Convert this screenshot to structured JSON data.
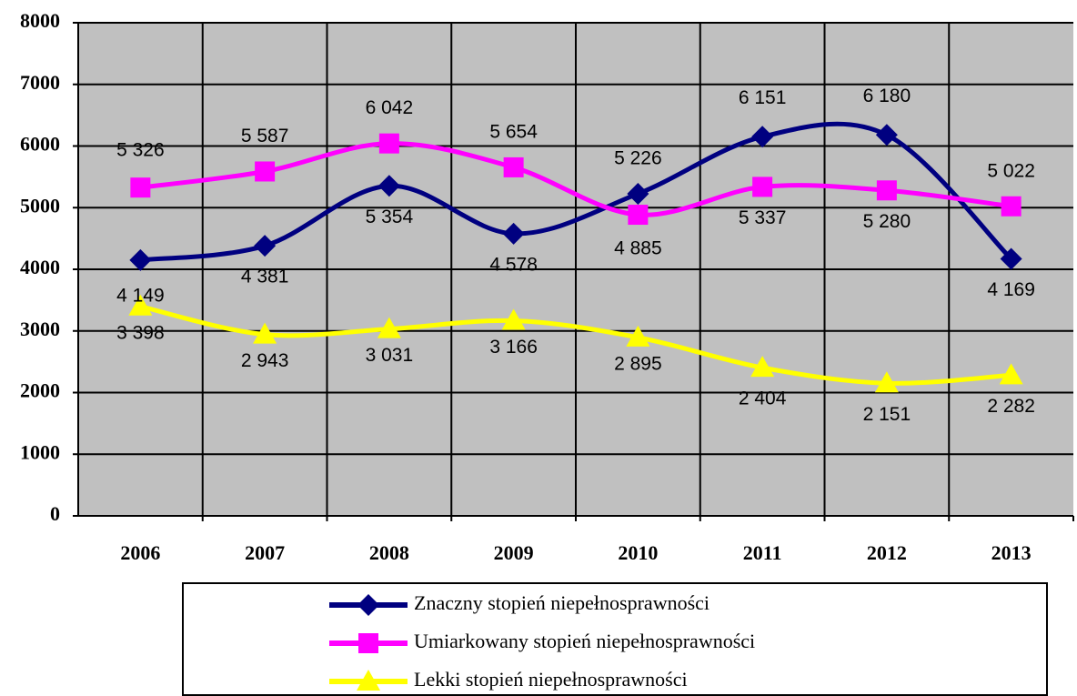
{
  "chart_data": {
    "type": "line",
    "categories": [
      "2006",
      "2007",
      "2008",
      "2009",
      "2010",
      "2011",
      "2012",
      "2013"
    ],
    "series": [
      {
        "name": "Znaczny stopień niepełnosprawności",
        "color": "#000080",
        "marker": "diamond",
        "values": [
          4149,
          4381,
          5354,
          4578,
          5226,
          6151,
          6180,
          4169
        ],
        "value_labels": [
          "4 149",
          "4 381",
          "5 354",
          "4 578",
          "5 226",
          "6 151",
          "6 180",
          "4 169"
        ]
      },
      {
        "name": "Umiarkowany stopień niepełnosprawności",
        "color": "#ff00ff",
        "marker": "square",
        "values": [
          5326,
          5587,
          6042,
          5654,
          4885,
          5337,
          5280,
          5022
        ],
        "value_labels": [
          "5 326",
          "5 587",
          "6 042",
          "5 654",
          "4 885",
          "5 337",
          "5 280",
          "5 022"
        ]
      },
      {
        "name": "Lekki stopień niepełnosprawności",
        "color": "#ffff00",
        "marker": "triangle",
        "values": [
          3398,
          2943,
          3031,
          3166,
          2895,
          2404,
          2151,
          2282
        ],
        "value_labels": [
          "3 398",
          "2 943",
          "3 031",
          "3 166",
          "2 895",
          "2 404",
          "2 151",
          "2 282"
        ]
      }
    ],
    "ylim": [
      0,
      8000
    ],
    "yticks": [
      0,
      1000,
      2000,
      3000,
      4000,
      5000,
      6000,
      7000,
      8000
    ],
    "grid": true,
    "plot_background": "#c0c0c0",
    "legend": "bottom"
  }
}
